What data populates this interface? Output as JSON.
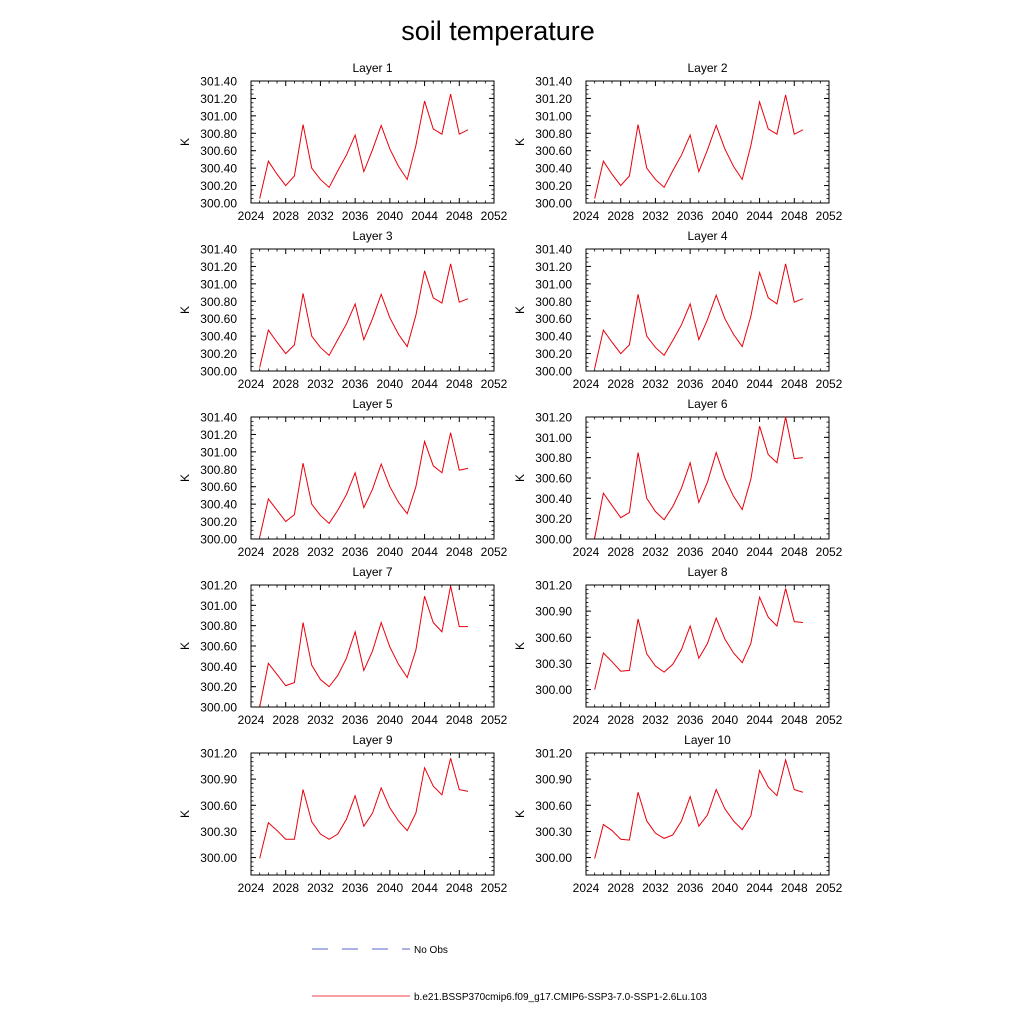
{
  "title": "soil temperature",
  "chart_data": [
    {
      "type": "line",
      "title": "Layer 1",
      "ylabel": "K",
      "xlim": [
        2024,
        2052
      ],
      "ylim": [
        300.0,
        301.4
      ],
      "xticks": [
        "2024",
        "2028",
        "2032",
        "2036",
        "2040",
        "2044",
        "2048",
        "2052"
      ],
      "yticks": [
        "300.00",
        "300.20",
        "300.40",
        "300.60",
        "300.80",
        "301.00",
        "301.20",
        "301.40"
      ],
      "x": [
        2025,
        2026,
        2027,
        2028,
        2029,
        2030,
        2031,
        2032,
        2033,
        2034,
        2035,
        2036,
        2037,
        2038,
        2039,
        2040,
        2041,
        2042,
        2043,
        2044,
        2045,
        2046,
        2047,
        2048,
        2049
      ],
      "series": [
        {
          "name": "b.e21.BSSP370cmip6.f09_g17.CMIP6-SSP3-7.0-SSP1-2.6Lu.103",
          "color": "#e8000b",
          "values": [
            300.05,
            300.48,
            300.33,
            300.2,
            300.31,
            300.9,
            300.4,
            300.27,
            300.18,
            300.37,
            300.55,
            300.78,
            300.36,
            300.61,
            300.89,
            300.62,
            300.42,
            300.27,
            300.66,
            301.17,
            300.85,
            300.79,
            301.25,
            300.79,
            300.84
          ]
        }
      ]
    },
    {
      "type": "line",
      "title": "Layer 2",
      "ylabel": "K",
      "xlim": [
        2024,
        2052
      ],
      "ylim": [
        300.0,
        301.4
      ],
      "xticks": [
        "2024",
        "2028",
        "2032",
        "2036",
        "2040",
        "2044",
        "2048",
        "2052"
      ],
      "yticks": [
        "300.00",
        "300.20",
        "300.40",
        "300.60",
        "300.80",
        "301.00",
        "301.20",
        "301.40"
      ],
      "x": [
        2025,
        2026,
        2027,
        2028,
        2029,
        2030,
        2031,
        2032,
        2033,
        2034,
        2035,
        2036,
        2037,
        2038,
        2039,
        2040,
        2041,
        2042,
        2043,
        2044,
        2045,
        2046,
        2047,
        2048,
        2049
      ],
      "series": [
        {
          "name": "b.e21.BSSP370cmip6.f09_g17.CMIP6-SSP3-7.0-SSP1-2.6Lu.103",
          "color": "#e8000b",
          "values": [
            300.05,
            300.48,
            300.33,
            300.2,
            300.31,
            300.9,
            300.4,
            300.27,
            300.18,
            300.37,
            300.55,
            300.78,
            300.36,
            300.61,
            300.89,
            300.62,
            300.42,
            300.27,
            300.66,
            301.16,
            300.85,
            300.79,
            301.24,
            300.79,
            300.84
          ]
        }
      ]
    },
    {
      "type": "line",
      "title": "Layer 3",
      "ylabel": "K",
      "xlim": [
        2024,
        2052
      ],
      "ylim": [
        300.0,
        301.4
      ],
      "xticks": [
        "2024",
        "2028",
        "2032",
        "2036",
        "2040",
        "2044",
        "2048",
        "2052"
      ],
      "yticks": [
        "300.00",
        "300.20",
        "300.40",
        "300.60",
        "300.80",
        "301.00",
        "301.20",
        "301.40"
      ],
      "x": [
        2025,
        2026,
        2027,
        2028,
        2029,
        2030,
        2031,
        2032,
        2033,
        2034,
        2035,
        2036,
        2037,
        2038,
        2039,
        2040,
        2041,
        2042,
        2043,
        2044,
        2045,
        2046,
        2047,
        2048,
        2049
      ],
      "series": [
        {
          "name": "b.e21.BSSP370cmip6.f09_g17.CMIP6-SSP3-7.0-SSP1-2.6Lu.103",
          "color": "#e8000b",
          "values": [
            300.04,
            300.47,
            300.33,
            300.2,
            300.3,
            300.89,
            300.4,
            300.27,
            300.18,
            300.36,
            300.54,
            300.77,
            300.36,
            300.6,
            300.88,
            300.61,
            300.42,
            300.28,
            300.64,
            301.15,
            300.84,
            300.78,
            301.23,
            300.79,
            300.83
          ]
        }
      ]
    },
    {
      "type": "line",
      "title": "Layer 4",
      "ylabel": "K",
      "xlim": [
        2024,
        2052
      ],
      "ylim": [
        300.0,
        301.4
      ],
      "xticks": [
        "2024",
        "2028",
        "2032",
        "2036",
        "2040",
        "2044",
        "2048",
        "2052"
      ],
      "yticks": [
        "300.00",
        "300.20",
        "300.40",
        "300.60",
        "300.80",
        "301.00",
        "301.20",
        "301.40"
      ],
      "x": [
        2025,
        2026,
        2027,
        2028,
        2029,
        2030,
        2031,
        2032,
        2033,
        2034,
        2035,
        2036,
        2037,
        2038,
        2039,
        2040,
        2041,
        2042,
        2043,
        2044,
        2045,
        2046,
        2047,
        2048,
        2049
      ],
      "series": [
        {
          "name": "b.e21.BSSP370cmip6.f09_g17.CMIP6-SSP3-7.0-SSP1-2.6Lu.103",
          "color": "#e8000b",
          "values": [
            300.03,
            300.47,
            300.33,
            300.2,
            300.3,
            300.88,
            300.4,
            300.27,
            300.18,
            300.35,
            300.53,
            300.77,
            300.36,
            300.59,
            300.87,
            300.6,
            300.42,
            300.28,
            300.63,
            301.13,
            300.84,
            300.77,
            301.23,
            300.79,
            300.83
          ]
        }
      ]
    },
    {
      "type": "line",
      "title": "Layer 5",
      "ylabel": "K",
      "xlim": [
        2024,
        2052
      ],
      "ylim": [
        300.0,
        301.4
      ],
      "xticks": [
        "2024",
        "2028",
        "2032",
        "2036",
        "2040",
        "2044",
        "2048",
        "2052"
      ],
      "yticks": [
        "300.00",
        "300.20",
        "300.40",
        "300.60",
        "300.80",
        "301.00",
        "301.20",
        "301.40"
      ],
      "x": [
        2025,
        2026,
        2027,
        2028,
        2029,
        2030,
        2031,
        2032,
        2033,
        2034,
        2035,
        2036,
        2037,
        2038,
        2039,
        2040,
        2041,
        2042,
        2043,
        2044,
        2045,
        2046,
        2047,
        2048,
        2049
      ],
      "series": [
        {
          "name": "b.e21.BSSP370cmip6.f09_g17.CMIP6-SSP3-7.0-SSP1-2.6Lu.103",
          "color": "#e8000b",
          "values": [
            300.02,
            300.46,
            300.33,
            300.2,
            300.28,
            300.87,
            300.4,
            300.27,
            300.18,
            300.33,
            300.51,
            300.76,
            300.36,
            300.57,
            300.86,
            300.6,
            300.42,
            300.29,
            300.6,
            301.12,
            300.84,
            300.76,
            301.22,
            300.79,
            300.81
          ]
        }
      ]
    },
    {
      "type": "line",
      "title": "Layer 6",
      "ylabel": "K",
      "xlim": [
        2024,
        2052
      ],
      "ylim": [
        300.0,
        301.2
      ],
      "xticks": [
        "2024",
        "2028",
        "2032",
        "2036",
        "2040",
        "2044",
        "2048",
        "2052"
      ],
      "yticks": [
        "300.00",
        "300.20",
        "300.40",
        "300.60",
        "300.80",
        "301.00",
        "301.20"
      ],
      "x": [
        2025,
        2026,
        2027,
        2028,
        2029,
        2030,
        2031,
        2032,
        2033,
        2034,
        2035,
        2036,
        2037,
        2038,
        2039,
        2040,
        2041,
        2042,
        2043,
        2044,
        2045,
        2046,
        2047,
        2048,
        2049
      ],
      "series": [
        {
          "name": "b.e21.BSSP370cmip6.f09_g17.CMIP6-SSP3-7.0-SSP1-2.6Lu.103",
          "color": "#e8000b",
          "values": [
            300.01,
            300.45,
            300.33,
            300.21,
            300.26,
            300.85,
            300.4,
            300.27,
            300.19,
            300.32,
            300.5,
            300.75,
            300.36,
            300.56,
            300.85,
            300.6,
            300.42,
            300.29,
            300.59,
            301.11,
            300.83,
            300.75,
            301.2,
            300.79,
            300.8
          ]
        }
      ]
    },
    {
      "type": "line",
      "title": "Layer 7",
      "ylabel": "K",
      "xlim": [
        2024,
        2052
      ],
      "ylim": [
        300.0,
        301.2
      ],
      "xticks": [
        "2024",
        "2028",
        "2032",
        "2036",
        "2040",
        "2044",
        "2048",
        "2052"
      ],
      "yticks": [
        "300.00",
        "300.20",
        "300.40",
        "300.60",
        "300.80",
        "301.00",
        "301.20"
      ],
      "x": [
        2025,
        2026,
        2027,
        2028,
        2029,
        2030,
        2031,
        2032,
        2033,
        2034,
        2035,
        2036,
        2037,
        2038,
        2039,
        2040,
        2041,
        2042,
        2043,
        2044,
        2045,
        2046,
        2047,
        2048,
        2049
      ],
      "series": [
        {
          "name": "b.e21.BSSP370cmip6.f09_g17.CMIP6-SSP3-7.0-SSP1-2.6Lu.103",
          "color": "#e8000b",
          "values": [
            300.0,
            300.43,
            300.32,
            300.21,
            300.24,
            300.83,
            300.41,
            300.27,
            300.2,
            300.31,
            300.48,
            300.74,
            300.36,
            300.55,
            300.83,
            300.59,
            300.42,
            300.29,
            300.56,
            301.09,
            300.83,
            300.74,
            301.19,
            300.79,
            300.79
          ]
        }
      ]
    },
    {
      "type": "line",
      "title": "Layer 8",
      "ylabel": "K",
      "xlim": [
        2024,
        2052
      ],
      "ylim": [
        299.8,
        301.2
      ],
      "xticks": [
        "2024",
        "2028",
        "2032",
        "2036",
        "2040",
        "2044",
        "2048",
        "2052"
      ],
      "yticks": [
        "300.00",
        "300.30",
        "300.60",
        "300.90",
        "301.20"
      ],
      "x": [
        2025,
        2026,
        2027,
        2028,
        2029,
        2030,
        2031,
        2032,
        2033,
        2034,
        2035,
        2036,
        2037,
        2038,
        2039,
        2040,
        2041,
        2042,
        2043,
        2044,
        2045,
        2046,
        2047,
        2048,
        2049
      ],
      "series": [
        {
          "name": "b.e21.BSSP370cmip6.f09_g17.CMIP6-SSP3-7.0-SSP1-2.6Lu.103",
          "color": "#e8000b",
          "values": [
            300.0,
            300.42,
            300.32,
            300.21,
            300.22,
            300.81,
            300.41,
            300.27,
            300.2,
            300.29,
            300.46,
            300.73,
            300.36,
            300.53,
            300.82,
            300.58,
            300.42,
            300.31,
            300.53,
            301.06,
            300.83,
            300.73,
            301.16,
            300.78,
            300.77
          ]
        }
      ]
    },
    {
      "type": "line",
      "title": "Layer 9",
      "ylabel": "K",
      "xlim": [
        2024,
        2052
      ],
      "ylim": [
        299.8,
        301.2
      ],
      "xticks": [
        "2024",
        "2028",
        "2032",
        "2036",
        "2040",
        "2044",
        "2048",
        "2052"
      ],
      "yticks": [
        "300.00",
        "300.30",
        "300.60",
        "300.90",
        "301.20"
      ],
      "x": [
        2025,
        2026,
        2027,
        2028,
        2029,
        2030,
        2031,
        2032,
        2033,
        2034,
        2035,
        2036,
        2037,
        2038,
        2039,
        2040,
        2041,
        2042,
        2043,
        2044,
        2045,
        2046,
        2047,
        2048,
        2049
      ],
      "series": [
        {
          "name": "b.e21.BSSP370cmip6.f09_g17.CMIP6-SSP3-7.0-SSP1-2.6Lu.103",
          "color": "#e8000b",
          "values": [
            299.99,
            300.4,
            300.31,
            300.21,
            300.21,
            300.78,
            300.41,
            300.27,
            300.21,
            300.27,
            300.44,
            300.71,
            300.36,
            300.51,
            300.8,
            300.57,
            300.42,
            300.31,
            300.51,
            301.03,
            300.82,
            300.72,
            301.14,
            300.78,
            300.76
          ]
        }
      ]
    },
    {
      "type": "line",
      "title": "Layer 10",
      "ylabel": "K",
      "xlim": [
        2024,
        2052
      ],
      "ylim": [
        299.8,
        301.2
      ],
      "xticks": [
        "2024",
        "2028",
        "2032",
        "2036",
        "2040",
        "2044",
        "2048",
        "2052"
      ],
      "yticks": [
        "300.00",
        "300.30",
        "300.60",
        "300.90",
        "301.20"
      ],
      "x": [
        2025,
        2026,
        2027,
        2028,
        2029,
        2030,
        2031,
        2032,
        2033,
        2034,
        2035,
        2036,
        2037,
        2038,
        2039,
        2040,
        2041,
        2042,
        2043,
        2044,
        2045,
        2046,
        2047,
        2048,
        2049
      ],
      "series": [
        {
          "name": "b.e21.BSSP370cmip6.f09_g17.CMIP6-SSP3-7.0-SSP1-2.6Lu.103",
          "color": "#e8000b",
          "values": [
            299.99,
            300.38,
            300.31,
            300.21,
            300.2,
            300.75,
            300.42,
            300.28,
            300.22,
            300.26,
            300.42,
            300.7,
            300.36,
            300.49,
            300.78,
            300.56,
            300.42,
            300.32,
            300.48,
            301.0,
            300.81,
            300.71,
            301.12,
            300.78,
            300.75
          ]
        }
      ]
    }
  ],
  "legend": {
    "items": [
      {
        "label": "No Obs",
        "color": "#5566cc",
        "style": "dashed"
      },
      {
        "label": "b.e21.BSSP370cmip6.f09_g17.CMIP6-SSP3-7.0-SSP1-2.6Lu.103",
        "color": "#e8000b",
        "style": "solid"
      }
    ]
  }
}
